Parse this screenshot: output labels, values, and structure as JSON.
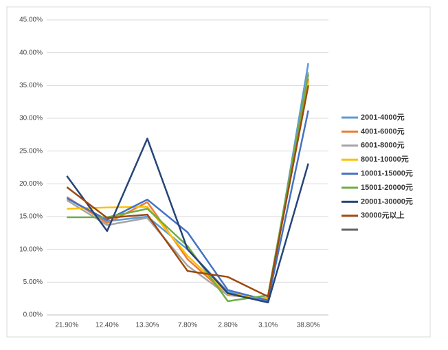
{
  "chart_data": {
    "type": "line",
    "categories": [
      "21.90%",
      "12.40%",
      "13.30%",
      "7.80%",
      "2.80%",
      "3.10%",
      "38.80%"
    ],
    "series": [
      {
        "name": "2001-4000元",
        "color": "#5b9bd5",
        "values": [
          17.8,
          14.3,
          15.0,
          10.0,
          3.5,
          2.0,
          38.4
        ]
      },
      {
        "name": "4001-6000元",
        "color": "#ed7d31",
        "values": [
          18.0,
          14.0,
          17.2,
          8.5,
          3.0,
          2.5,
          36.0
        ]
      },
      {
        "name": "6001-8000元",
        "color": "#a5a5a5",
        "values": [
          17.5,
          13.7,
          14.8,
          7.5,
          3.0,
          2.6,
          37.0
        ]
      },
      {
        "name": "8001-10000元",
        "color": "#ffc000",
        "values": [
          16.2,
          16.4,
          16.5,
          9.0,
          3.2,
          2.5,
          35.5
        ]
      },
      {
        "name": "10001-15000元",
        "color": "#4472c4",
        "values": [
          17.8,
          14.5,
          17.6,
          12.6,
          3.8,
          2.2,
          31.2
        ]
      },
      {
        "name": "15001-20000元",
        "color": "#70ad47",
        "values": [
          14.9,
          14.9,
          16.2,
          10.5,
          2.1,
          3.0,
          36.7
        ]
      },
      {
        "name": "20001-30000元",
        "color": "#264478",
        "values": [
          21.2,
          12.8,
          26.9,
          10.0,
          3.3,
          1.9,
          23.1
        ]
      },
      {
        "name": "30000元以上",
        "color": "#9e480e",
        "values": [
          19.5,
          14.8,
          15.3,
          6.7,
          5.8,
          2.8,
          35.0
        ]
      }
    ],
    "ylim": [
      0,
      45
    ],
    "yticks": [
      {
        "value": 0,
        "label": "0.00%"
      },
      {
        "value": 5,
        "label": "5.00%"
      },
      {
        "value": 10,
        "label": "10.00%"
      },
      {
        "value": 15,
        "label": "15.00%"
      },
      {
        "value": 20,
        "label": "20.00%"
      },
      {
        "value": 25,
        "label": "25.00%"
      },
      {
        "value": 30,
        "label": "30.00%"
      },
      {
        "value": 35,
        "label": "35.00%"
      },
      {
        "value": 40,
        "label": "40.00%"
      },
      {
        "value": 45,
        "label": "45.00%"
      }
    ],
    "grid": true,
    "legend": "right"
  }
}
